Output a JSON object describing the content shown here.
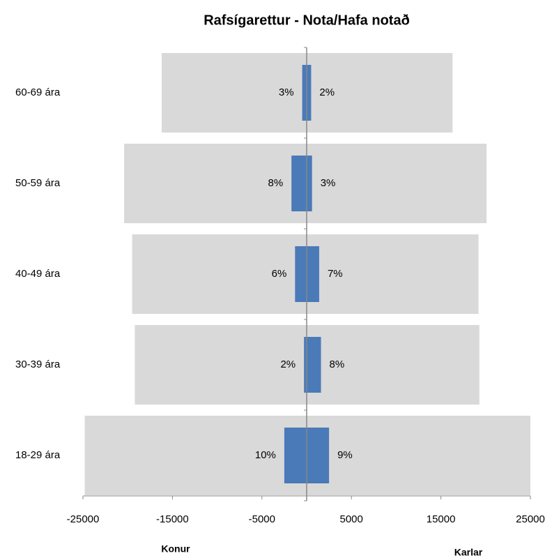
{
  "chart_data": {
    "type": "pyramid",
    "title": "Rafsígarettur - Nota/Hafa notað",
    "categories": [
      "18-29 ára",
      "30-39 ára",
      "40-49 ára",
      "50-59 ára",
      "60-69 ára"
    ],
    "series": [
      {
        "color": "#d9d9d9",
        "values": [
          -24800,
          -19200,
          -19500,
          -20400,
          -16200
        ]
      },
      {
        "color": "#d9d9d9",
        "values": [
          25000,
          19300,
          19200,
          20100,
          16300
        ]
      },
      {
        "color": "#4a7ab8",
        "values": [
          -2500,
          -300,
          -1300,
          -1700,
          -500
        ],
        "value_labels": [
          "10%",
          "2%",
          "6%",
          "8%",
          "3%"
        ]
      },
      {
        "color": "#4a7ab8",
        "values": [
          2500,
          1600,
          1400,
          600,
          500
        ],
        "value_labels": [
          "9%",
          "8%",
          "7%",
          "3%",
          "2%"
        ]
      }
    ],
    "xlim": [
      -25000,
      25000
    ],
    "xticks": [
      -25000,
      -15000,
      -5000,
      5000,
      15000,
      25000
    ],
    "left_label": "Konur",
    "right_label": "Karlar"
  }
}
